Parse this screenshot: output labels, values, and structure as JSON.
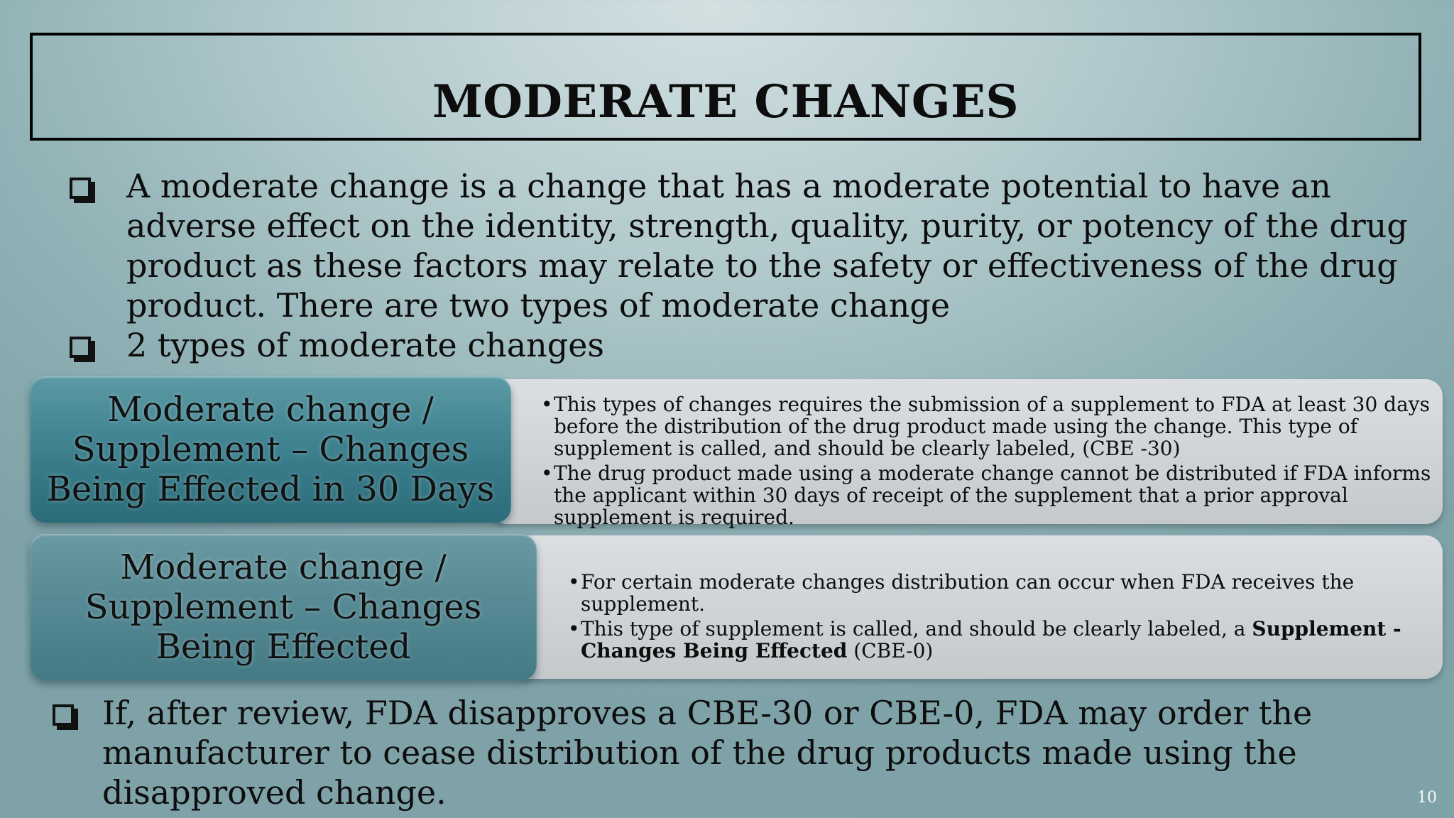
{
  "slide": {
    "title": "MODERATE CHANGES",
    "intro_bullet": "A moderate change is a change that has a moderate potential to have an adverse effect on the identity, strength, quality, purity, or potency of the drug product as these factors may relate to the safety or effectiveness of the drug product. There are two types of moderate change",
    "types_bullet": "2 types of moderate changes",
    "rows": [
      {
        "label": "Moderate change / Supplement – Changes Being Effected in 30 Days",
        "points": [
          "This types of changes requires the submission of a supplement to FDA at least 30 days before the distribution of the drug product made using the change. This type of supplement is called, and should be clearly labeled, (CBE -30)",
          "The drug product made using a moderate change cannot be distributed if FDA informs the applicant within 30 days of receipt of the supplement that a prior approval supplement is required."
        ]
      },
      {
        "label": "Moderate change / Supplement – Changes Being Effected",
        "points": [
          "For certain moderate changes  distribution can occur when FDA receives the supplement.",
          {
            "before": "This type of supplement is called, and should be clearly labeled, a ",
            "bold": "Supplement - Changes Being Effected",
            "after": " (CBE-0)"
          }
        ]
      }
    ],
    "closing_bullet": "If, after review, FDA disapproves a CBE-30 or CBE-0, FDA may order the manufacturer to cease distribution of the drug products made using the disapproved change.",
    "page_number": "10"
  },
  "colors": {
    "background": "#a9c3c6",
    "row1_label": "#3f8290",
    "row2_label": "#578a94",
    "detail_panel": "#d2d6d9"
  },
  "icons": {
    "bullet": "checkbox-square-icon"
  }
}
